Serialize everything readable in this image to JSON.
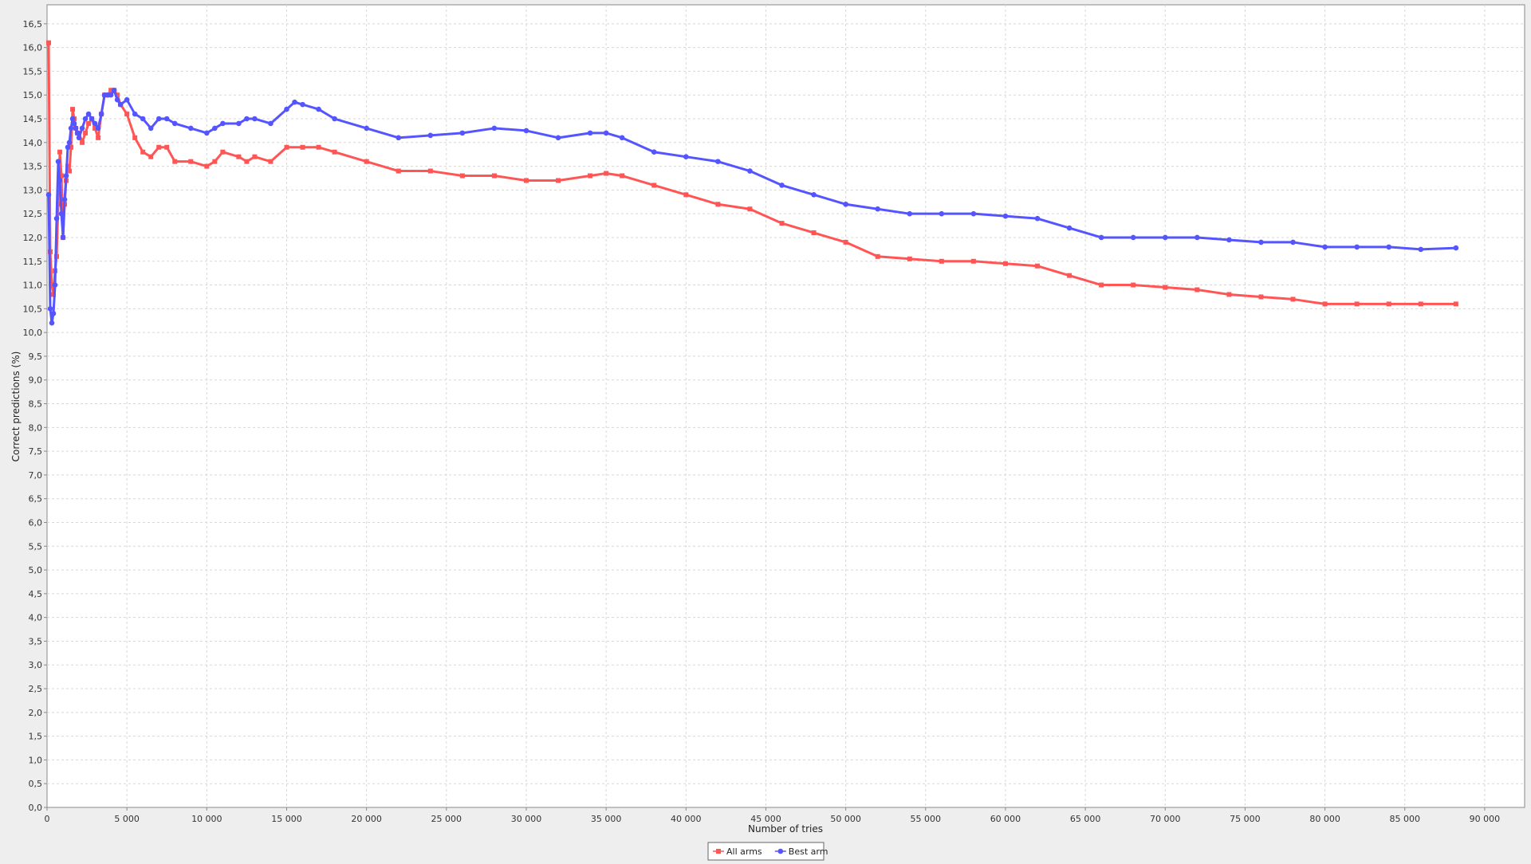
{
  "chart_data": {
    "type": "line",
    "title": "",
    "xlabel": "Number of tries",
    "ylabel": "Correct predictions (%)",
    "xlim": [
      0,
      92500
    ],
    "ylim": [
      0,
      16.9
    ],
    "x_ticks": [
      0,
      5000,
      10000,
      15000,
      20000,
      25000,
      30000,
      35000,
      40000,
      45000,
      50000,
      55000,
      60000,
      65000,
      70000,
      75000,
      80000,
      85000,
      90000
    ],
    "x_tick_labels": [
      "0",
      "5 000",
      "10 000",
      "15 000",
      "20 000",
      "25 000",
      "30 000",
      "35 000",
      "40 000",
      "45 000",
      "50 000",
      "55 000",
      "60 000",
      "65 000",
      "70 000",
      "75 000",
      "80 000",
      "85 000",
      "90 000"
    ],
    "y_ticks": [
      0,
      0.5,
      1,
      1.5,
      2,
      2.5,
      3,
      3.5,
      4,
      4.5,
      5,
      5.5,
      6,
      6.5,
      7,
      7.5,
      8,
      8.5,
      9,
      9.5,
      10,
      10.5,
      11,
      11.5,
      12,
      12.5,
      13,
      13.5,
      14,
      14.5,
      15,
      15.5,
      16,
      16.5
    ],
    "y_tick_labels": [
      "0,0",
      "0,5",
      "1,0",
      "1,5",
      "2,0",
      "2,5",
      "3,0",
      "3,5",
      "4,0",
      "4,5",
      "5,0",
      "5,5",
      "6,0",
      "6,5",
      "7,0",
      "7,5",
      "8,0",
      "8,5",
      "9,0",
      "9,5",
      "10,0",
      "10,5",
      "11,0",
      "11,5",
      "12,0",
      "12,5",
      "13,0",
      "13,5",
      "14,0",
      "14,5",
      "15,0",
      "15,5",
      "16,0",
      "16,5"
    ],
    "grid": true,
    "legend_position": "bottom-center",
    "series": [
      {
        "name": "All arms",
        "color": "#ff5555",
        "marker": "square",
        "x": [
          100,
          200,
          300,
          400,
          500,
          600,
          700,
          800,
          900,
          1000,
          1100,
          1200,
          1300,
          1400,
          1500,
          1600,
          1700,
          1800,
          1900,
          2000,
          2200,
          2400,
          2600,
          2800,
          3000,
          3200,
          3400,
          3600,
          3800,
          4000,
          4200,
          4400,
          4600,
          5000,
          5500,
          6000,
          6500,
          7000,
          7500,
          8000,
          9000,
          10000,
          10500,
          11000,
          12000,
          12500,
          13000,
          14000,
          15000,
          16000,
          17000,
          18000,
          20000,
          22000,
          24000,
          26000,
          28000,
          30000,
          32000,
          34000,
          35000,
          36000,
          38000,
          40000,
          42000,
          44000,
          46000,
          48000,
          50000,
          52000,
          54000,
          56000,
          58000,
          60000,
          62000,
          64000,
          66000,
          68000,
          70000,
          72000,
          74000,
          76000,
          78000,
          80000,
          82000,
          84000,
          86000,
          88200
        ],
        "y": [
          16.1,
          11.7,
          11.0,
          10.8,
          11.3,
          11.6,
          12.7,
          13.8,
          13.3,
          12.0,
          12.7,
          13.2,
          13.5,
          13.4,
          13.9,
          14.7,
          14.5,
          14.3,
          14.2,
          14.2,
          14.0,
          14.2,
          14.4,
          14.5,
          14.3,
          14.1,
          14.6,
          15.0,
          15.0,
          15.1,
          15.1,
          15.0,
          14.8,
          14.6,
          14.1,
          13.8,
          13.7,
          13.9,
          13.9,
          13.6,
          13.6,
          13.5,
          13.6,
          13.8,
          13.7,
          13.6,
          13.7,
          13.6,
          13.9,
          13.9,
          13.9,
          13.8,
          13.6,
          13.4,
          13.4,
          13.3,
          13.3,
          13.2,
          13.2,
          13.3,
          13.35,
          13.3,
          13.1,
          12.9,
          12.7,
          12.6,
          12.3,
          12.1,
          11.9,
          11.6,
          11.55,
          11.5,
          11.5,
          11.45,
          11.4,
          11.2,
          11.0,
          11.0,
          10.95,
          10.9,
          10.8,
          10.75,
          10.7,
          10.6,
          10.6,
          10.6,
          10.6,
          10.6
        ]
      },
      {
        "name": "Best arm",
        "color": "#5555ff",
        "marker": "circle",
        "x": [
          100,
          200,
          300,
          400,
          500,
          600,
          700,
          800,
          900,
          1000,
          1100,
          1200,
          1300,
          1400,
          1500,
          1600,
          1700,
          1800,
          1900,
          2000,
          2200,
          2400,
          2600,
          2800,
          3000,
          3200,
          3400,
          3600,
          3800,
          4000,
          4200,
          4400,
          4600,
          5000,
          5500,
          6000,
          6500,
          7000,
          7500,
          8000,
          9000,
          10000,
          10500,
          11000,
          12000,
          12500,
          13000,
          14000,
          15000,
          15500,
          16000,
          17000,
          18000,
          20000,
          22000,
          24000,
          26000,
          28000,
          30000,
          32000,
          34000,
          35000,
          36000,
          38000,
          40000,
          42000,
          44000,
          46000,
          48000,
          50000,
          52000,
          54000,
          56000,
          58000,
          60000,
          62000,
          64000,
          66000,
          68000,
          70000,
          72000,
          74000,
          76000,
          78000,
          80000,
          82000,
          84000,
          86000,
          88200
        ],
        "y": [
          12.9,
          10.5,
          10.2,
          10.4,
          11.0,
          12.4,
          13.6,
          13.2,
          12.5,
          12.0,
          12.8,
          13.3,
          13.9,
          14.0,
          14.3,
          14.5,
          14.4,
          14.3,
          14.2,
          14.1,
          14.3,
          14.5,
          14.6,
          14.5,
          14.4,
          14.3,
          14.6,
          15.0,
          15.0,
          15.0,
          15.1,
          14.9,
          14.8,
          14.9,
          14.6,
          14.5,
          14.3,
          14.5,
          14.5,
          14.4,
          14.3,
          14.2,
          14.3,
          14.4,
          14.4,
          14.5,
          14.5,
          14.4,
          14.7,
          14.85,
          14.8,
          14.7,
          14.5,
          14.3,
          14.1,
          14.15,
          14.2,
          14.3,
          14.25,
          14.1,
          14.2,
          14.2,
          14.1,
          13.8,
          13.7,
          13.6,
          13.4,
          13.1,
          12.9,
          12.7,
          12.6,
          12.5,
          12.5,
          12.5,
          12.45,
          12.4,
          12.2,
          12.0,
          12.0,
          12.0,
          12.0,
          11.95,
          11.9,
          11.9,
          11.8,
          11.8,
          11.8,
          11.75,
          11.78
        ]
      }
    ]
  }
}
